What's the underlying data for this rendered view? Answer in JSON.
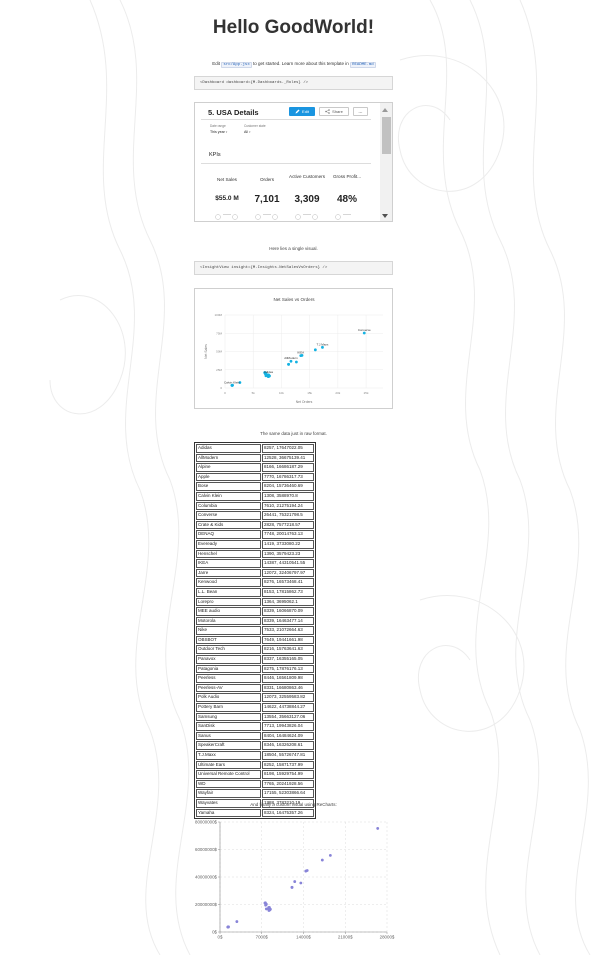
{
  "title": "Hello GoodWorld!",
  "intro": {
    "prefix": "Edit",
    "file": "src/App.jsx",
    "middle": "to get started. Learn more about this template in",
    "readme": "README.md"
  },
  "dashboard_code": "<Dashboard dashboard={M.Dashboards._Roles} />",
  "dashboard": {
    "title": "5. USA Details",
    "edit_label": "Edit",
    "share_label": "Share",
    "more_label": "...",
    "filters": [
      {
        "label": "Date range",
        "value": "This year"
      },
      {
        "label": "Customer state",
        "value": "All"
      }
    ],
    "kpis_heading": "KPIs",
    "kpis": [
      {
        "label": "Net Sales",
        "value": "$55.0 M"
      },
      {
        "label": "Orders",
        "value": "7,101"
      },
      {
        "label": "Active Customers",
        "value": "3,309"
      },
      {
        "label": "Gross Profit...",
        "value": "48%"
      }
    ]
  },
  "single_visual_caption": "Here lies a single visual.",
  "insight_code": "<InsightView insight={M.Insights.NetSalesVsOrders} />",
  "same_data_caption": "The same data just in raw format.",
  "custom_visual_caption": "And finally a custom visual using ReCharts:",
  "rows": [
    [
      "Adidas",
      "8257, 17647022.05"
    ],
    [
      "AllModern",
      "12528, 36675139.41"
    ],
    [
      "Alpine",
      "8166, 16686187.29"
    ],
    [
      "Apple",
      "7770, 16786317.73"
    ],
    [
      "Bose",
      "8204, 15736460.69"
    ],
    [
      "Calvin Klein",
      "1308, 3588970.8"
    ],
    [
      "Columbia",
      "7610, 21275194.24"
    ],
    [
      "Converse",
      "26441, 75321798.5"
    ],
    [
      "Crate & Kids",
      "2828, 7577218.57"
    ],
    [
      "DENAQ",
      "7748, 20014763.13"
    ],
    [
      "Eveready",
      "1419, 3733080.22"
    ],
    [
      "Henschel",
      "1390, 3579423.23"
    ],
    [
      "IKEA",
      "14387, 44310541.55"
    ],
    [
      "Jarre",
      "12072, 32406797.97"
    ],
    [
      "Kenwood",
      "8276, 16573468.41"
    ],
    [
      "L.L. Bean",
      "8153, 17815862.73"
    ],
    [
      "Lorepro",
      "1364, 3695062.1"
    ],
    [
      "MEE audio",
      "8339, 16066870.09"
    ],
    [
      "Motorola",
      "8339, 16463477.14"
    ],
    [
      "Nike",
      "7533, 21072664.63"
    ],
    [
      "OBSBOT",
      "7649, 19441661.98"
    ],
    [
      "Outdoor Tech",
      "8216, 15763641.63"
    ],
    [
      "Panavox",
      "8337, 16355165.05"
    ],
    [
      "Patagonia",
      "8275, 17876176.13"
    ],
    [
      "Peerless",
      "8446, 16561809.98"
    ],
    [
      "Peerless-AV",
      "8331, 16680863.46"
    ],
    [
      "Polk Audio",
      "12073, 32559583.82"
    ],
    [
      "Pottery Barn",
      "14622, 44738844.27"
    ],
    [
      "Samsung",
      "13554, 35663127.06"
    ],
    [
      "SanDisk",
      "7713, 19943826.04"
    ],
    [
      "Sanus",
      "8404, 16484624.09"
    ],
    [
      "SpeakerCraft",
      "8346, 16326208.61"
    ],
    [
      "T.J.Maxx",
      "18504, 55726747.81"
    ],
    [
      "Ultimate Ears",
      "8252, 15871737.99"
    ],
    [
      "Universal Remote Control",
      "8198, 15929754.99"
    ],
    [
      "WD",
      "7765, 20241928.56"
    ],
    [
      "Wayfair",
      "17155, 52303866.64"
    ],
    [
      "Wayvates",
      "1388, 3783210.19"
    ],
    [
      "Yamaha",
      "8324, 16475357.26"
    ]
  ],
  "chart_data": [
    {
      "type": "scatter",
      "title": "Net Sales vs Orders",
      "xlabel": "Net Orders",
      "ylabel": "Net Sales",
      "xlim": [
        0,
        30000
      ],
      "ylim": [
        0,
        100000000
      ],
      "x_ticks": [
        "0",
        "5k",
        "10k",
        "15k",
        "20k",
        "25k"
      ],
      "y_ticks": [
        "0",
        "25M",
        "50M",
        "75M",
        "100M"
      ],
      "grid": true,
      "color": "#14b2e2",
      "point_labels": [
        "Converse",
        "T.J.Maxx",
        "IKEA",
        "AllModern",
        "Adidas",
        "Calvin Klein"
      ],
      "points_from": "rows"
    },
    {
      "type": "scatter",
      "title": "",
      "xlabel": "",
      "ylabel": "",
      "xlim": [
        0,
        28000
      ],
      "ylim": [
        0,
        80000000
      ],
      "x_ticks": [
        "0$",
        "7000$",
        "14000$",
        "21000$",
        "28000$"
      ],
      "y_ticks": [
        "0$",
        "20000000$",
        "40000000$",
        "60000000$",
        "80000000$"
      ],
      "grid": true,
      "color": "#8884d8",
      "points_from": "rows"
    }
  ]
}
